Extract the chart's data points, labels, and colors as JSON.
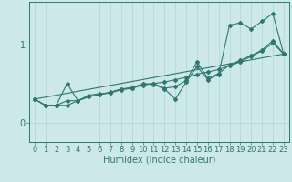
{
  "xlabel": "Humidex (Indice chaleur)",
  "x_values": [
    0,
    1,
    2,
    3,
    4,
    5,
    6,
    7,
    8,
    9,
    10,
    11,
    12,
    13,
    14,
    15,
    16,
    17,
    18,
    19,
    20,
    21,
    22,
    23
  ],
  "line_jagged": [
    0.3,
    0.22,
    0.22,
    0.5,
    0.28,
    0.35,
    0.37,
    0.38,
    0.43,
    0.44,
    0.5,
    0.49,
    0.43,
    0.3,
    0.52,
    0.72,
    0.55,
    0.62,
    1.25,
    1.28,
    1.2,
    1.3,
    1.4,
    0.88
  ],
  "line_smooth1": [
    0.3,
    0.22,
    0.22,
    0.22,
    0.28,
    0.33,
    0.36,
    0.38,
    0.42,
    0.44,
    0.48,
    0.5,
    0.52,
    0.55,
    0.58,
    0.62,
    0.65,
    0.68,
    0.73,
    0.78,
    0.85,
    0.92,
    1.02,
    0.88
  ],
  "line_smooth2": [
    0.3,
    0.22,
    0.22,
    0.28,
    0.28,
    0.33,
    0.36,
    0.39,
    0.43,
    0.45,
    0.49,
    0.5,
    0.44,
    0.46,
    0.54,
    0.78,
    0.57,
    0.63,
    0.74,
    0.8,
    0.86,
    0.93,
    1.05,
    0.88
  ],
  "trend_x": [
    0,
    23
  ],
  "trend_y": [
    0.3,
    0.88
  ],
  "yticks": [
    0,
    1
  ],
  "ytick_labels": [
    "0",
    "1"
  ],
  "ylim": [
    -0.25,
    1.55
  ],
  "xlim": [
    -0.5,
    23.5
  ],
  "bg_color": "#cde8e8",
  "line_color": "#2d7870",
  "grid_color": "#aed4d4",
  "tick_fontsize": 6,
  "xlabel_fontsize": 7
}
